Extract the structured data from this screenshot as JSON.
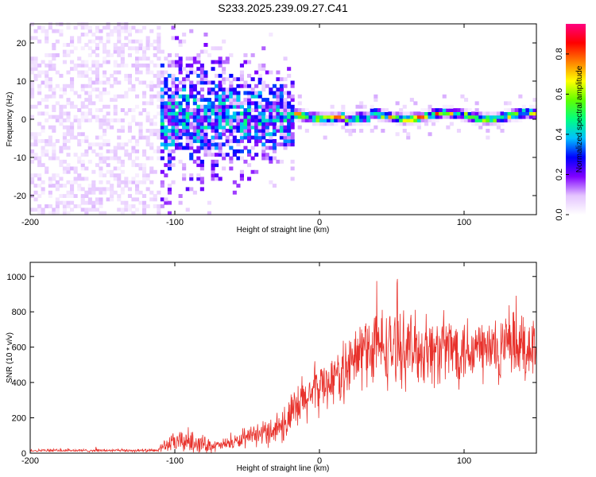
{
  "title": "S233.2025.239.09.27.C41",
  "chart_data": [
    {
      "type": "heatmap",
      "name": "spectrogram",
      "xlabel": "Height of straight line (km)",
      "ylabel": "Frequency (Hz)",
      "xlim": [
        -200,
        150
      ],
      "ylim": [
        -25,
        25
      ],
      "xticks": [
        -200,
        -100,
        0,
        100
      ],
      "xtick_labels": [
        "-200",
        "-100",
        "0",
        "100"
      ],
      "yticks": [
        -20,
        -10,
        0,
        10,
        20
      ],
      "ytick_labels": [
        "-20",
        "-10",
        "0",
        "10",
        "20"
      ],
      "colorbar": {
        "label": "Normalized spectral amplitude",
        "range": [
          0,
          0.95
        ],
        "ticks": [
          0,
          0.2,
          0.4,
          0.6,
          0.8
        ],
        "tick_labels": [
          "0.0",
          "0.2",
          "0.4",
          "0.6",
          "0.8"
        ],
        "colors": [
          "#ffffff",
          "#e4c4ff",
          "#8000ff",
          "#0000ff",
          "#00c0ff",
          "#00ff80",
          "#60ff00",
          "#ffff00",
          "#ff8000",
          "#ff0000",
          "#ff0080"
        ]
      },
      "regions": [
        {
          "name": "broadband noise",
          "x_range": [
            -200,
            -110
          ],
          "freq_range": [
            -25,
            25
          ],
          "amplitude": 0.06
        },
        {
          "name": "diffuse signal",
          "x_range": [
            -110,
            -18
          ],
          "freq_range": [
            -12,
            12
          ],
          "amplitude": 0.18
        },
        {
          "name": "narrow line",
          "x_range": [
            -18,
            150
          ],
          "freq_center": 0.5,
          "freq_halfwidth": 2,
          "amplitude": 0.6
        }
      ]
    },
    {
      "type": "line",
      "name": "snr",
      "xlabel": "Height of straight line (km)",
      "ylabel": "SNR (10 * v/v)",
      "xlim": [
        -200,
        150
      ],
      "ylim": [
        0,
        1080
      ],
      "xticks": [
        -200,
        -100,
        0,
        100
      ],
      "xtick_labels": [
        "-200",
        "-100",
        "0",
        "100"
      ],
      "yticks": [
        0,
        200,
        400,
        600,
        800,
        1000
      ],
      "ytick_labels": [
        "0",
        "200",
        "400",
        "600",
        "800",
        "1000"
      ],
      "color": "#e8322c",
      "envelope": {
        "x": [
          -200,
          -112,
          -108,
          -100,
          -90,
          -80,
          -70,
          -60,
          -50,
          -40,
          -30,
          -20,
          -10,
          0,
          10,
          20,
          30,
          40,
          60,
          80,
          100,
          120,
          150
        ],
        "base": [
          15,
          15,
          40,
          60,
          70,
          50,
          40,
          60,
          80,
          110,
          140,
          200,
          300,
          380,
          420,
          480,
          580,
          600,
          590,
          580,
          600,
          580,
          600
        ],
        "noise": [
          10,
          10,
          40,
          70,
          90,
          60,
          40,
          50,
          60,
          80,
          120,
          160,
          200,
          180,
          180,
          220,
          280,
          280,
          250,
          250,
          260,
          250,
          260
        ]
      }
    }
  ]
}
